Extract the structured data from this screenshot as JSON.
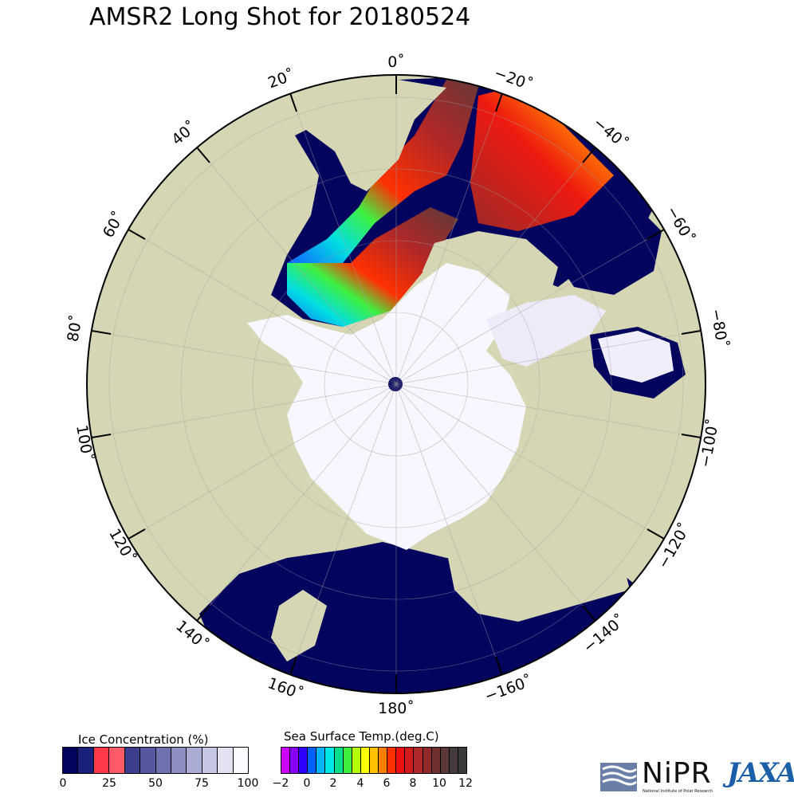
{
  "title": "AMSR2 Long Shot for 20180524",
  "longitude_labels": [
    {
      "value": "0˚"
    },
    {
      "value": "20˚"
    },
    {
      "value": "−20˚"
    },
    {
      "value": "40˚"
    },
    {
      "value": "−40˚"
    },
    {
      "value": "60˚"
    },
    {
      "value": "−60˚"
    },
    {
      "value": "80˚"
    },
    {
      "value": "−80˚"
    },
    {
      "value": "100˚"
    },
    {
      "value": "−100˚"
    },
    {
      "value": "120˚"
    },
    {
      "value": "−120˚"
    },
    {
      "value": "140˚"
    },
    {
      "value": "−140˚"
    },
    {
      "value": "160˚"
    },
    {
      "value": "−160˚"
    },
    {
      "value": "180˚"
    }
  ],
  "ice_legend": {
    "title": "Ice Concentration (%)",
    "ticks": [
      "0",
      "25",
      "50",
      "75",
      "100"
    ],
    "colors": [
      "#03045e",
      "#1a1f7a",
      "#ff3b4a",
      "#ff5a66",
      "#3c3f8e",
      "#55589f",
      "#6f72b0",
      "#8d8fc3",
      "#aaacd4",
      "#c6c7e4",
      "#e2e2f2",
      "#fbfbff"
    ]
  },
  "sst_legend": {
    "title": "Sea Surface Temp.(deg.C)",
    "ticks": [
      "−2",
      "0",
      "2",
      "4",
      "6",
      "8",
      "10",
      "12"
    ],
    "colors": [
      "#cc00ff",
      "#8a00ff",
      "#3000ff",
      "#0060ff",
      "#00b4ff",
      "#00e5e5",
      "#00e08a",
      "#3cf03c",
      "#b4ff00",
      "#ffff00",
      "#ffc000",
      "#ff8000",
      "#ff3000",
      "#ee1010",
      "#d01c1c",
      "#b02828",
      "#902a2a",
      "#703030",
      "#5a3636",
      "#443c3c",
      "#3a3a3a"
    ]
  },
  "logos": {
    "nipr": "NiPR",
    "nipr_sub": "National Institute of Polar Research",
    "jaxa": "JAXA"
  },
  "colors": {
    "land": "#d6d6b4",
    "ocean": "#03045e",
    "ice": "#f8f6ff"
  }
}
